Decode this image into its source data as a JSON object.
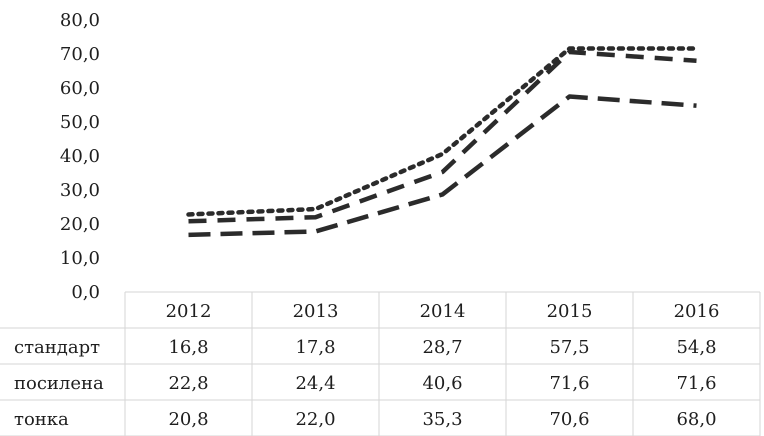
{
  "chart_data": {
    "type": "line",
    "categories": [
      "2012",
      "2013",
      "2014",
      "2015",
      "2016"
    ],
    "ylim": [
      0,
      80
    ],
    "yticks": [
      "0,0",
      "10,0",
      "20,0",
      "30,0",
      "40,0",
      "50,0",
      "60,0",
      "70,0",
      "80,0"
    ],
    "grid": false,
    "legend": "data table below chart",
    "series": [
      {
        "name": "стандарт",
        "values": [
          16.8,
          17.8,
          28.7,
          57.5,
          54.8
        ],
        "labels": [
          "16,8",
          "17,8",
          "28,7",
          "57,5",
          "54,8"
        ],
        "dash": "long-dash",
        "color": "#2b2b2b"
      },
      {
        "name": "посилена",
        "values": [
          22.8,
          24.4,
          40.6,
          71.6,
          71.6
        ],
        "labels": [
          "22,8",
          "24,4",
          "40,6",
          "71,6",
          "71,6"
        ],
        "dash": "dotted",
        "color": "#2b2b2b"
      },
      {
        "name": "тонка",
        "values": [
          20.8,
          22.0,
          35.3,
          70.6,
          68.0
        ],
        "labels": [
          "20,8",
          "22,0",
          "35,3",
          "70,6",
          "68,0"
        ],
        "dash": "dashed",
        "color": "#2b2b2b"
      }
    ]
  }
}
